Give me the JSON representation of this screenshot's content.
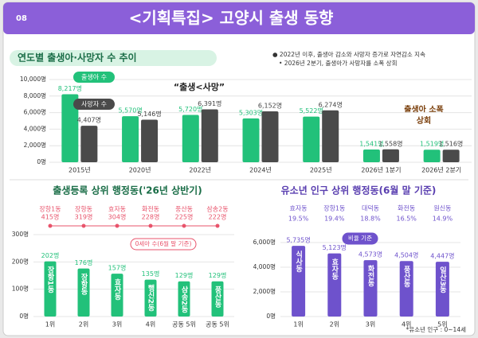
{
  "header": {
    "page": "08",
    "title": "<기획특집> 고양시 출생 동향"
  },
  "chart_data": [
    {
      "type": "bar",
      "title": "연도별 출생아·사망자 수 추이",
      "notes": [
        "● 2022년 이후, 출생아 감소와 사망자 증가로 자연감소 지속",
        "• 2026년 2분기, 출생아가 사망자를 소폭 상회"
      ],
      "annotations": [
        "“출생<사망”",
        "출생아 소폭",
        "상회"
      ],
      "categories": [
        "2015년",
        "2020년",
        "2022년",
        "2024년",
        "2025년",
        "2026년 1분기",
        "2026년 2분기"
      ],
      "series": [
        {
          "name": "출생아 수",
          "color": "#22c17a",
          "values": [
            8217,
            5570,
            5720,
            5303,
            5522,
            1541,
            1519
          ],
          "value_labels": [
            "8,217명",
            "5,570명",
            "5,720명",
            "5,303명",
            "5,522명",
            "1,541명",
            "1,519명"
          ]
        },
        {
          "name": "사망자 수",
          "color": "#4a4a4a",
          "values": [
            4407,
            5146,
            6391,
            6152,
            6274,
            1558,
            1516
          ],
          "value_labels": [
            "4,407명",
            "5,146명",
            "6,391명",
            "6,152명",
            "6,274명",
            "1,558명",
            "1,516명"
          ]
        }
      ],
      "ylim": [
        0,
        10000
      ],
      "yticks": [
        {
          "value": 0,
          "label": "0명"
        },
        {
          "value": 2000,
          "label": "2,000명"
        },
        {
          "value": 4000,
          "label": "4,000명"
        },
        {
          "value": 6000,
          "label": "6,000명"
        },
        {
          "value": 8000,
          "label": "8,000명"
        },
        {
          "value": 10000,
          "label": "10,000명"
        }
      ]
    },
    {
      "type": "bar",
      "title": "출생등록 상위 행정동('26년 상반기)",
      "categories": [
        "1위",
        "2위",
        "3위",
        "4위",
        "공동 5위",
        "공동 5위"
      ],
      "names": [
        "장항1동",
        "장항동",
        "효자동",
        "행신2동",
        "삼송2동",
        "풍산동"
      ],
      "values": [
        202,
        176,
        157,
        135,
        129,
        129
      ],
      "value_labels": [
        "202명",
        "176명",
        "157명",
        "135명",
        "129명",
        "129명"
      ],
      "color": "#22c17a",
      "ylim": [
        0,
        300
      ],
      "yticks": [
        {
          "value": 0,
          "label": "0명"
        },
        {
          "value": 100,
          "label": "100명"
        },
        {
          "value": 200,
          "label": "200명"
        },
        {
          "value": 300,
          "label": "300명"
        }
      ],
      "ranking": {
        "label": "0세아 수(6월 말 기준)",
        "color": "#e8536b",
        "categories": [
          "장항1동",
          "장항동",
          "효자동",
          "화전동",
          "풍산동",
          "삼송2동"
        ],
        "values": [
          415,
          319,
          304,
          228,
          225,
          222
        ],
        "value_labels": [
          "415명",
          "319명",
          "304명",
          "228명",
          "225명",
          "222명"
        ]
      }
    },
    {
      "type": "bar",
      "title": "유소년 인구 상위 행정동(6월 말 기준)",
      "categories": [
        "1위",
        "2위",
        "3위",
        "4위",
        "5위"
      ],
      "names": [
        "식사동",
        "효자동",
        "화전동",
        "풍산동",
        "일산3동"
      ],
      "values": [
        5735,
        5123,
        4573,
        4504,
        4447
      ],
      "value_labels": [
        "5,735명",
        "5,123명",
        "4,573명",
        "4,504명",
        "4,447명"
      ],
      "color": "#6e52cc",
      "ylim": [
        0,
        6000
      ],
      "yticks": [
        {
          "value": 0,
          "label": "0명"
        },
        {
          "value": 2000,
          "label": "2,000명"
        },
        {
          "value": 4000,
          "label": "4,000명"
        },
        {
          "value": 6000,
          "label": "6,000명"
        }
      ],
      "ranking": {
        "label": "비율 기준",
        "color": "#6e52cc",
        "categories": [
          "효자동",
          "장항1동",
          "대덕동",
          "화전동",
          "원신동"
        ],
        "values": [
          19.5,
          19.4,
          18.8,
          16.5,
          14.9
        ],
        "value_labels": [
          "19.5%",
          "19.4%",
          "18.8%",
          "16.5%",
          "14.9%"
        ]
      },
      "footnote": "*유소년 인구 : 0~14세"
    }
  ]
}
